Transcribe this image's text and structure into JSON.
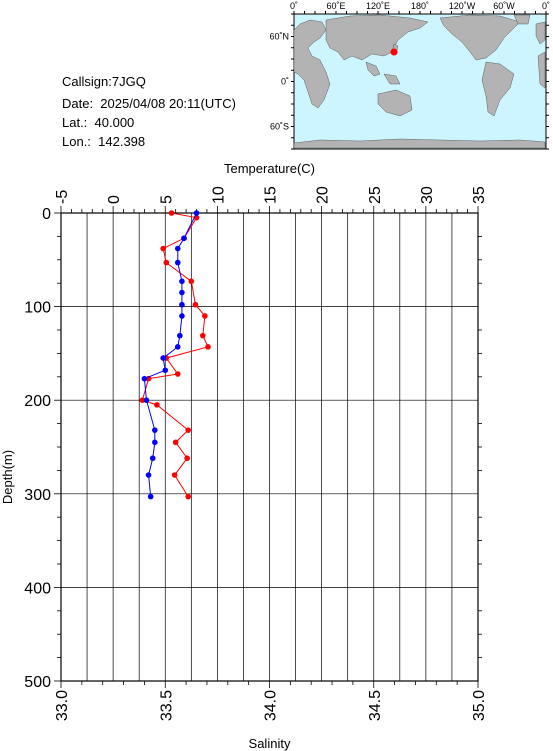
{
  "info": {
    "callsign": "Callsign:7JGQ",
    "date": "Date:  2025/04/08 20:11(UTC)",
    "lat": "Lat.:  40.000",
    "lon": "Lon.:  142.398"
  },
  "map": {
    "lon_labels": [
      "0˚",
      "60˚E",
      "120˚E",
      "180˚",
      "120˚W",
      "60˚W",
      "0˚"
    ],
    "lat_labels": [
      "60˚N",
      "0˚",
      "60˚S"
    ],
    "station_marker_color": "#ff0000",
    "ocean_color": "#ccf5ff",
    "land_color": "#b3b3b3"
  },
  "chart_data": {
    "type": "line",
    "top_axis": {
      "label": "Temperature(C)",
      "range": [
        -5,
        35
      ],
      "ticks": [
        "-5",
        "0",
        "5",
        "10",
        "15",
        "20",
        "25",
        "30",
        "35"
      ]
    },
    "bottom_axis": {
      "label": "Salinity",
      "range": [
        33.0,
        35.0
      ],
      "ticks": [
        "33.0",
        "33.5",
        "34.0",
        "34.5",
        "35.0"
      ]
    },
    "y_axis": {
      "label": "Depth(m)",
      "range": [
        0,
        500
      ],
      "inverted": true,
      "ticks": [
        "0",
        "100",
        "200",
        "300",
        "400",
        "500"
      ]
    },
    "grid": true,
    "series": [
      {
        "color": "#ff0000",
        "axis": "temperature",
        "points": [
          {
            "x": 5.6,
            "y": 0
          },
          {
            "x": 8.0,
            "y": 5
          },
          {
            "x": 6.8,
            "y": 27
          },
          {
            "x": 4.8,
            "y": 38
          },
          {
            "x": 5.1,
            "y": 53
          },
          {
            "x": 7.5,
            "y": 73
          },
          {
            "x": 7.9,
            "y": 98
          },
          {
            "x": 8.8,
            "y": 110
          },
          {
            "x": 8.6,
            "y": 131
          },
          {
            "x": 9.1,
            "y": 143
          },
          {
            "x": 5.1,
            "y": 155
          },
          {
            "x": 6.2,
            "y": 172
          },
          {
            "x": 3.4,
            "y": 177
          },
          {
            "x": 2.8,
            "y": 200
          },
          {
            "x": 4.2,
            "y": 205
          },
          {
            "x": 7.2,
            "y": 232
          },
          {
            "x": 6.0,
            "y": 245
          },
          {
            "x": 7.1,
            "y": 262
          },
          {
            "x": 5.9,
            "y": 280
          },
          {
            "x": 7.2,
            "y": 303
          }
        ]
      },
      {
        "color": "#0000ff",
        "axis": "salinity",
        "points": [
          {
            "x": 33.65,
            "y": 0
          },
          {
            "x": 33.59,
            "y": 27
          },
          {
            "x": 33.56,
            "y": 38
          },
          {
            "x": 33.56,
            "y": 53
          },
          {
            "x": 33.58,
            "y": 73
          },
          {
            "x": 33.58,
            "y": 85
          },
          {
            "x": 33.58,
            "y": 98
          },
          {
            "x": 33.58,
            "y": 110
          },
          {
            "x": 33.57,
            "y": 131
          },
          {
            "x": 33.56,
            "y": 143
          },
          {
            "x": 33.49,
            "y": 155
          },
          {
            "x": 33.5,
            "y": 168
          },
          {
            "x": 33.4,
            "y": 177
          },
          {
            "x": 33.41,
            "y": 200
          },
          {
            "x": 33.45,
            "y": 232
          },
          {
            "x": 33.45,
            "y": 245
          },
          {
            "x": 33.44,
            "y": 262
          },
          {
            "x": 33.42,
            "y": 280
          },
          {
            "x": 33.43,
            "y": 303
          }
        ]
      }
    ]
  }
}
